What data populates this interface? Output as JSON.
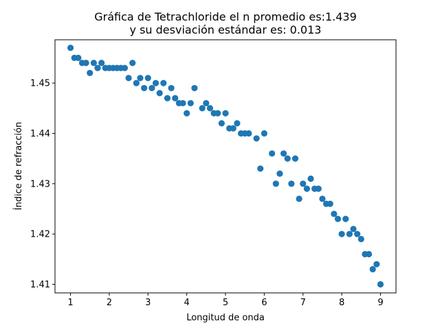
{
  "chart_data": {
    "type": "scatter",
    "title_line1": "Gráfica de Tetrachloride el n promedio es:1.439",
    "title_line2": "y su desviación estándar es: 0.013",
    "xlabel": "Longitud de onda",
    "ylabel": "Índice de refracción",
    "xlim": [
      0.6,
      9.4
    ],
    "ylim": [
      1.4083,
      1.4586
    ],
    "grid": false,
    "xticks": [
      1,
      2,
      3,
      4,
      5,
      6,
      7,
      8,
      9
    ],
    "xtick_labels": [
      "1",
      "2",
      "3",
      "4",
      "5",
      "6",
      "7",
      "8",
      "9"
    ],
    "yticks": [
      1.41,
      1.42,
      1.43,
      1.44,
      1.45
    ],
    "ytick_labels": [
      "1.41",
      "1.42",
      "1.43",
      "1.44",
      "1.45"
    ],
    "marker_color": "#1f77b4",
    "points": [
      [
        1.0,
        1.457
      ],
      [
        1.1,
        1.455
      ],
      [
        1.2,
        1.455
      ],
      [
        1.3,
        1.454
      ],
      [
        1.4,
        1.454
      ],
      [
        1.5,
        1.452
      ],
      [
        1.6,
        1.454
      ],
      [
        1.7,
        1.453
      ],
      [
        1.8,
        1.454
      ],
      [
        1.9,
        1.453
      ],
      [
        2.0,
        1.453
      ],
      [
        2.1,
        1.453
      ],
      [
        2.2,
        1.453
      ],
      [
        2.3,
        1.453
      ],
      [
        2.4,
        1.453
      ],
      [
        2.5,
        1.451
      ],
      [
        2.6,
        1.454
      ],
      [
        2.7,
        1.45
      ],
      [
        2.8,
        1.451
      ],
      [
        2.9,
        1.449
      ],
      [
        3.0,
        1.451
      ],
      [
        3.1,
        1.449
      ],
      [
        3.2,
        1.45
      ],
      [
        3.3,
        1.448
      ],
      [
        3.4,
        1.45
      ],
      [
        3.5,
        1.447
      ],
      [
        3.6,
        1.449
      ],
      [
        3.7,
        1.447
      ],
      [
        3.8,
        1.446
      ],
      [
        3.9,
        1.446
      ],
      [
        4.0,
        1.444
      ],
      [
        4.1,
        1.446
      ],
      [
        4.2,
        1.449
      ],
      [
        4.4,
        1.445
      ],
      [
        4.5,
        1.446
      ],
      [
        4.6,
        1.445
      ],
      [
        4.7,
        1.444
      ],
      [
        4.8,
        1.444
      ],
      [
        4.9,
        1.442
      ],
      [
        5.0,
        1.444
      ],
      [
        5.1,
        1.441
      ],
      [
        5.2,
        1.441
      ],
      [
        5.3,
        1.442
      ],
      [
        5.4,
        1.44
      ],
      [
        5.5,
        1.44
      ],
      [
        5.6,
        1.44
      ],
      [
        5.8,
        1.439
      ],
      [
        5.9,
        1.433
      ],
      [
        6.0,
        1.44
      ],
      [
        6.2,
        1.436
      ],
      [
        6.3,
        1.43
      ],
      [
        6.4,
        1.432
      ],
      [
        6.5,
        1.436
      ],
      [
        6.6,
        1.435
      ],
      [
        6.7,
        1.43
      ],
      [
        6.8,
        1.435
      ],
      [
        6.9,
        1.427
      ],
      [
        7.0,
        1.43
      ],
      [
        7.1,
        1.429
      ],
      [
        7.2,
        1.431
      ],
      [
        7.3,
        1.429
      ],
      [
        7.4,
        1.429
      ],
      [
        7.5,
        1.427
      ],
      [
        7.6,
        1.426
      ],
      [
        7.7,
        1.426
      ],
      [
        7.8,
        1.424
      ],
      [
        7.9,
        1.423
      ],
      [
        8.0,
        1.42
      ],
      [
        8.1,
        1.423
      ],
      [
        8.2,
        1.42
      ],
      [
        8.3,
        1.421
      ],
      [
        8.4,
        1.42
      ],
      [
        8.5,
        1.419
      ],
      [
        8.6,
        1.416
      ],
      [
        8.7,
        1.416
      ],
      [
        8.8,
        1.413
      ],
      [
        8.9,
        1.414
      ],
      [
        9.0,
        1.41
      ]
    ]
  }
}
